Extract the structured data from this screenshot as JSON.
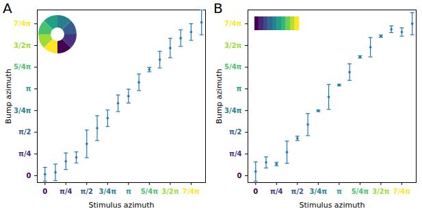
{
  "chart_data": [
    {
      "type": "scatter",
      "title": "A",
      "xlabel": "Stimulus azimuth",
      "ylabel": "Bump azimuth",
      "color": "#1f77b4",
      "x": [
        0,
        0.392699,
        0.785398,
        1.178097,
        1.570796,
        1.963495,
        2.356194,
        2.748894,
        3.141593,
        3.534292,
        3.926991,
        4.31969,
        4.712389,
        5.105088,
        5.497787,
        5.890486
      ],
      "values": [
        0.05,
        0.12,
        0.52,
        0.66,
        1.15,
        1.72,
        2.08,
        2.62,
        2.88,
        3.38,
        3.84,
        4.2,
        4.62,
        4.98,
        5.2,
        5.55
      ],
      "errors": [
        0.25,
        0.3,
        0.3,
        0.2,
        0.5,
        0.45,
        0.3,
        0.3,
        0.25,
        0.3,
        0.08,
        0.3,
        0.35,
        0.3,
        0.3,
        0.45
      ],
      "xlim": [
        -0.29,
        6.04
      ],
      "ylim": [
        -0.25,
        6.0
      ],
      "xticks": [
        {
          "value": 0,
          "label": "0"
        },
        {
          "value": 0.785398,
          "label": "π/4"
        },
        {
          "value": 1.570796,
          "label": "π/2"
        },
        {
          "value": 2.356194,
          "label": "3/4π"
        },
        {
          "value": 3.141593,
          "label": "π"
        },
        {
          "value": 3.926991,
          "label": "5/4π"
        },
        {
          "value": 4.712389,
          "label": "3/2π"
        },
        {
          "value": 5.497787,
          "label": "7/4π"
        }
      ],
      "yticks": [
        {
          "value": 0,
          "label": "0"
        },
        {
          "value": 0.785398,
          "label": "π/4"
        },
        {
          "value": 1.570796,
          "label": "π/2"
        },
        {
          "value": 2.356194,
          "label": "3/4π"
        },
        {
          "value": 3.141593,
          "label": "π"
        },
        {
          "value": 3.926991,
          "label": "5/4π"
        },
        {
          "value": 4.712389,
          "label": "3/2π"
        },
        {
          "value": 5.497787,
          "label": "7/4π"
        }
      ],
      "marker": "wheel"
    },
    {
      "type": "scatter",
      "title": "B",
      "xlabel": "Stimulus azimuth",
      "ylabel": "Bump azimuth",
      "color": "#1f77b4",
      "x": [
        0,
        0.392699,
        0.785398,
        1.178097,
        1.570796,
        1.963495,
        2.356194,
        2.748894,
        3.141593,
        3.534292,
        3.926991,
        4.31969,
        4.712389,
        5.105088,
        5.497787,
        5.890486
      ],
      "values": [
        0.15,
        0.48,
        0.42,
        0.85,
        1.35,
        1.85,
        2.35,
        2.85,
        3.28,
        3.75,
        4.3,
        4.65,
        5.05,
        5.3,
        5.2,
        5.5
      ],
      "errors": [
        0.35,
        0.2,
        0.06,
        0.4,
        0.08,
        0.4,
        0.03,
        0.45,
        0.03,
        0.3,
        0.04,
        0.35,
        0.04,
        0.12,
        0.15,
        0.4
      ],
      "xlim": [
        -0.29,
        6.04
      ],
      "ylim": [
        -0.25,
        6.0
      ],
      "xticks": [
        {
          "value": 0,
          "label": "0"
        },
        {
          "value": 0.785398,
          "label": "π/4"
        },
        {
          "value": 1.570796,
          "label": "π/2"
        },
        {
          "value": 2.356194,
          "label": "3/4π"
        },
        {
          "value": 3.141593,
          "label": "π"
        },
        {
          "value": 3.926991,
          "label": "5/4π"
        },
        {
          "value": 4.712389,
          "label": "3/2π"
        },
        {
          "value": 5.497787,
          "label": "7/4π"
        }
      ],
      "yticks": [
        {
          "value": 0,
          "label": "0"
        },
        {
          "value": 0.785398,
          "label": "π/4"
        },
        {
          "value": 1.570796,
          "label": "π/2"
        },
        {
          "value": 2.356194,
          "label": "3/4π"
        },
        {
          "value": 3.141593,
          "label": "π"
        },
        {
          "value": 3.926991,
          "label": "5/4π"
        },
        {
          "value": 4.712389,
          "label": "3/2π"
        },
        {
          "value": 5.497787,
          "label": "7/4π"
        }
      ],
      "marker": "bar"
    }
  ]
}
